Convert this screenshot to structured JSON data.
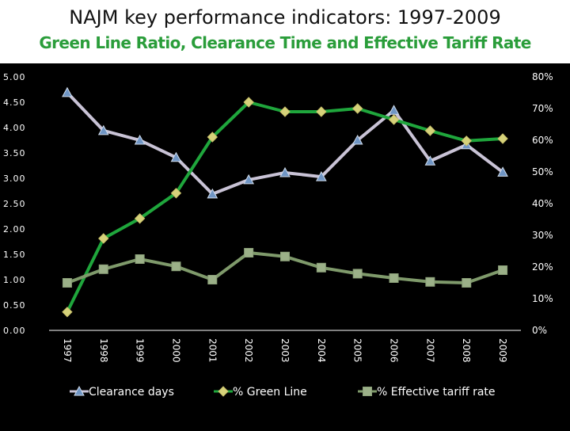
{
  "title": "NAJM key performance indicators:  1997-2009",
  "subtitle": "Green Line Ratio, Clearance Time and Effective Tariff Rate",
  "colors": {
    "background": "#000000",
    "title_bg": "#ffffff",
    "subtitle_text": "#2a9d3a",
    "axis_text": "#ffffff",
    "clearance": "#c9c3d6",
    "green_line": "#1fa63c",
    "green_marker": "#d6d27a",
    "tariff": "#7f9a6b",
    "tariff_marker": "#9bb088"
  },
  "chart_data": {
    "type": "line",
    "categories": [
      "1997",
      "1998",
      "1999",
      "2000",
      "2001",
      "2002",
      "2003",
      "2004",
      "2005",
      "2006",
      "2007",
      "2008",
      "2009"
    ],
    "y_left": {
      "range": [
        0,
        5
      ],
      "ticks": [
        "0.00",
        "0.50",
        "1.00",
        "1.50",
        "2.00",
        "2.50",
        "3.00",
        "3.50",
        "4.00",
        "4.50",
        "5.00"
      ]
    },
    "y_right": {
      "range": [
        0,
        80
      ],
      "ticks": [
        "0%",
        "10%",
        "20%",
        "30%",
        "40%",
        "50%",
        "60%",
        "70%",
        "80%"
      ]
    },
    "series": [
      {
        "name": "Clearance days",
        "axis": "left",
        "marker": "triangle",
        "values": [
          4.69,
          3.94,
          3.75,
          3.41,
          2.69,
          2.97,
          3.11,
          3.03,
          3.75,
          4.34,
          3.34,
          3.66,
          3.12
        ]
      },
      {
        "name": "% Green Line",
        "axis": "right",
        "marker": "diamond",
        "values": [
          5.8,
          29.0,
          35.3,
          43.3,
          61.0,
          72.0,
          69.0,
          69.0,
          70.0,
          66.5,
          63.0,
          59.8,
          60.5
        ]
      },
      {
        "name": "% Effective tariff rate",
        "axis": "right",
        "marker": "square",
        "values": [
          15.0,
          19.3,
          22.5,
          20.2,
          16.0,
          24.5,
          23.3,
          19.8,
          17.9,
          16.5,
          15.3,
          15.0,
          19.0
        ]
      }
    ],
    "legend_position": "bottom"
  }
}
